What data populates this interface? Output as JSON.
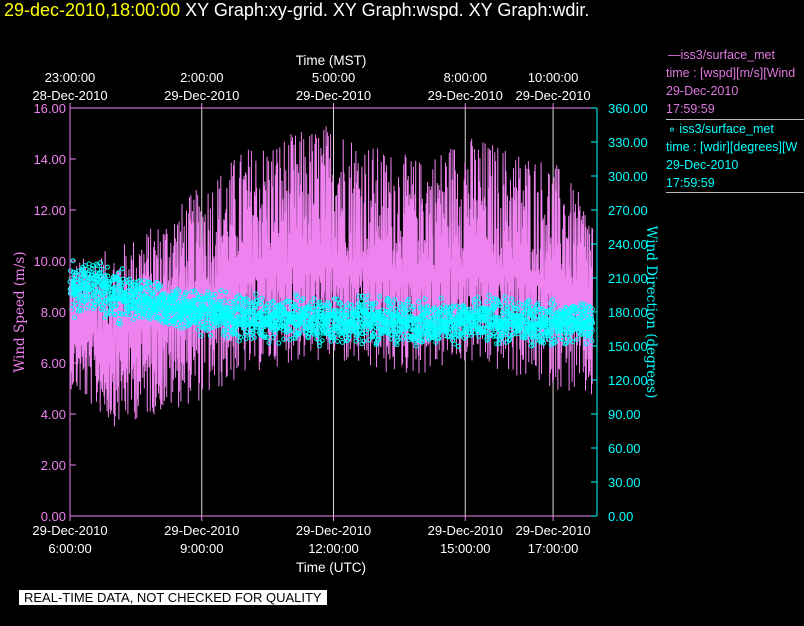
{
  "header": {
    "time": "29-dec-2010,18:00:00",
    "graphs": "XY Graph:xy-grid.  XY Graph:wspd.  XY Graph:wdir."
  },
  "chart_data": {
    "type": "line",
    "x_axis_bottom": {
      "label": "Time (UTC)",
      "ticks": [
        {
          "hour": 6,
          "date": "29-Dec-2010",
          "time": "6:00:00"
        },
        {
          "hour": 9,
          "date": "29-Dec-2010",
          "time": "9:00:00"
        },
        {
          "hour": 12,
          "date": "29-Dec-2010",
          "time": "12:00:00"
        },
        {
          "hour": 15,
          "date": "29-Dec-2010",
          "time": "15:00:00"
        },
        {
          "hour": 17,
          "date": "29-Dec-2010",
          "time": "17:00:00"
        }
      ],
      "range_hours_utc": [
        6,
        18
      ]
    },
    "x_axis_top": {
      "label": "Time (MST)",
      "ticks": [
        {
          "hour": 6,
          "time": "23:00:00",
          "date": "28-Dec-2010"
        },
        {
          "hour": 9,
          "time": "2:00:00",
          "date": "29-Dec-2010"
        },
        {
          "hour": 12,
          "time": "5:00:00",
          "date": "29-Dec-2010"
        },
        {
          "hour": 15,
          "time": "8:00:00",
          "date": "29-Dec-2010"
        },
        {
          "hour": 17,
          "time": "10:00:00",
          "date": "29-Dec-2010"
        }
      ]
    },
    "y_left": {
      "label": "Wind Speed (m/s)",
      "range": [
        0,
        16
      ],
      "ticks": [
        "0.00",
        "2.00",
        "4.00",
        "6.00",
        "8.00",
        "10.00",
        "12.00",
        "14.00",
        "16.00"
      ]
    },
    "y_right": {
      "label": "Wind Direction (degrees)",
      "range": [
        0,
        360
      ],
      "ticks": [
        "0.00",
        "30.00",
        "60.00",
        "90.00",
        "120.00",
        "150.00",
        "180.00",
        "210.00",
        "240.00",
        "270.00",
        "300.00",
        "330.00",
        "360.00"
      ]
    },
    "grid": "vertical lines at bottom tick hours",
    "series": [
      {
        "name": "iss3/surface_met",
        "variable": "wspd",
        "axis": "left",
        "color": "#ee82ee",
        "style": "line",
        "envelope": [
          {
            "hour": 6.0,
            "mean": 7.5,
            "low": 5.0,
            "high": 10.0
          },
          {
            "hour": 7.0,
            "mean": 7.0,
            "low": 3.5,
            "high": 10.5
          },
          {
            "hour": 8.0,
            "mean": 7.8,
            "low": 4.0,
            "high": 11.5
          },
          {
            "hour": 9.0,
            "mean": 8.5,
            "low": 4.5,
            "high": 13.0
          },
          {
            "hour": 10.0,
            "mean": 9.3,
            "low": 5.5,
            "high": 14.5
          },
          {
            "hour": 11.0,
            "mean": 9.8,
            "low": 6.0,
            "high": 15.0
          },
          {
            "hour": 12.0,
            "mean": 10.0,
            "low": 6.0,
            "high": 15.5
          },
          {
            "hour": 13.0,
            "mean": 9.5,
            "low": 5.5,
            "high": 14.5
          },
          {
            "hour": 14.0,
            "mean": 9.5,
            "low": 5.5,
            "high": 14.0
          },
          {
            "hour": 15.0,
            "mean": 9.8,
            "low": 6.0,
            "high": 15.0
          },
          {
            "hour": 16.0,
            "mean": 9.5,
            "low": 5.5,
            "high": 14.5
          },
          {
            "hour": 17.0,
            "mean": 9.0,
            "low": 5.0,
            "high": 14.0
          },
          {
            "hour": 17.9,
            "mean": 8.0,
            "low": 4.5,
            "high": 12.0
          }
        ]
      },
      {
        "name": "iss3/surface_met",
        "variable": "wdir",
        "axis": "right",
        "color": "#00ffff",
        "style": "markers",
        "envelope": [
          {
            "hour": 6.0,
            "mean": 195,
            "low": 170,
            "high": 230
          },
          {
            "hour": 6.5,
            "mean": 200,
            "low": 175,
            "high": 235
          },
          {
            "hour": 7.0,
            "mean": 195,
            "low": 165,
            "high": 225
          },
          {
            "hour": 8.0,
            "mean": 185,
            "low": 160,
            "high": 210
          },
          {
            "hour": 9.0,
            "mean": 180,
            "low": 155,
            "high": 205
          },
          {
            "hour": 10.0,
            "mean": 175,
            "low": 150,
            "high": 200
          },
          {
            "hour": 11.0,
            "mean": 175,
            "low": 148,
            "high": 200
          },
          {
            "hour": 12.0,
            "mean": 172,
            "low": 145,
            "high": 198
          },
          {
            "hour": 13.0,
            "mean": 172,
            "low": 145,
            "high": 200
          },
          {
            "hour": 14.0,
            "mean": 170,
            "low": 145,
            "high": 195
          },
          {
            "hour": 15.0,
            "mean": 170,
            "low": 145,
            "high": 198
          },
          {
            "hour": 16.0,
            "mean": 170,
            "low": 145,
            "high": 198
          },
          {
            "hour": 17.0,
            "mean": 170,
            "low": 145,
            "high": 195
          },
          {
            "hour": 17.9,
            "mean": 170,
            "low": 148,
            "high": 195
          }
        ]
      }
    ]
  },
  "legend": {
    "wspd": {
      "line1": "iss3/surface_met",
      "line2": "time : [wspd][m/s][Wind",
      "line3": "29-Dec-2010",
      "line4": "17:59:59",
      "color": "#dd77dd"
    },
    "wdir": {
      "line1": "iss3/surface_met",
      "line2": "time : [wdir][degrees][W",
      "line3": "29-Dec-2010",
      "line4": "17:59:59",
      "color": "#00ffff"
    }
  },
  "footer": {
    "quality_note": "REAL-TIME DATA, NOT CHECKED FOR QUALITY"
  }
}
